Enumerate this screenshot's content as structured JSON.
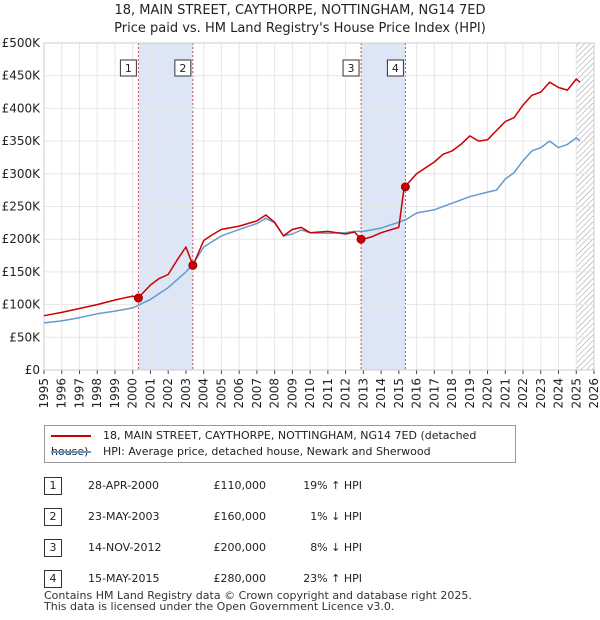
{
  "title_line1": "18, MAIN STREET, CAYTHORPE, NOTTINGHAM, NG14 7ED",
  "title_line2": "Price paid vs. HM Land Registry's House Price Index (HPI)",
  "colors": {
    "property": "#cc0000",
    "hpi": "#6699cc",
    "shade": "#dce6f7",
    "grid": "#e6e6e6",
    "marker": "#cc0000"
  },
  "legend": {
    "property": "18, MAIN STREET, CAYTHORPE, NOTTINGHAM, NG14 7ED (detached house)",
    "hpi": "HPI: Average price, detached house, Newark and Sherwood"
  },
  "sales": [
    {
      "num": "1",
      "date": "28-APR-2000",
      "price": "£110,000",
      "hpi": "19% ↑ HPI"
    },
    {
      "num": "2",
      "date": "23-MAY-2003",
      "price": "£160,000",
      "hpi": "1% ↓ HPI"
    },
    {
      "num": "3",
      "date": "14-NOV-2012",
      "price": "£200,000",
      "hpi": "8% ↓ HPI"
    },
    {
      "num": "4",
      "date": "15-MAY-2015",
      "price": "£280,000",
      "hpi": "23% ↑ HPI"
    }
  ],
  "footer_line1": "Contains HM Land Registry data © Crown copyright and database right 2025.",
  "footer_line2": "This data is licensed under the Open Government Licence v3.0.",
  "chart_data": {
    "type": "line",
    "title": "18, MAIN STREET, CAYTHORPE, NOTTINGHAM, NG14 7ED — Price paid vs. HM Land Registry's House Price Index (HPI)",
    "xlabel": "",
    "ylabel": "",
    "xlim": [
      1995,
      2026
    ],
    "ylim": [
      0,
      500000
    ],
    "y_ticks": [
      0,
      50000,
      100000,
      150000,
      200000,
      250000,
      300000,
      350000,
      400000,
      450000,
      500000
    ],
    "y_tick_labels": [
      "£0",
      "£50K",
      "£100K",
      "£150K",
      "£200K",
      "£250K",
      "£300K",
      "£350K",
      "£400K",
      "£450K",
      "£500K"
    ],
    "x_ticks": [
      1995,
      1996,
      1997,
      1998,
      1999,
      2000,
      2001,
      2002,
      2003,
      2004,
      2005,
      2006,
      2007,
      2008,
      2009,
      2010,
      2011,
      2012,
      2013,
      2014,
      2015,
      2016,
      2017,
      2018,
      2019,
      2020,
      2021,
      2022,
      2023,
      2024,
      2025,
      2026
    ],
    "x_tick_labels": [
      "1995",
      "1996",
      "1997",
      "1998",
      "1999",
      "2000",
      "2001",
      "2002",
      "2003",
      "2004",
      "2005",
      "2006",
      "2007",
      "2008",
      "2009",
      "2010",
      "2011",
      "2012",
      "2013",
      "2014",
      "2015",
      "2016",
      "2017",
      "2018",
      "2019",
      "2020",
      "2021",
      "2022",
      "2023",
      "2024",
      "2025",
      "2026"
    ],
    "shaded_periods": [
      [
        2000.32,
        2003.39
      ],
      [
        2012.87,
        2015.37
      ]
    ],
    "forecast_hatch_start": 2025.0,
    "sale_markers": [
      {
        "label": "1",
        "x": 2000.32,
        "y": 110000
      },
      {
        "label": "2",
        "x": 2003.39,
        "y": 160000
      },
      {
        "label": "3",
        "x": 2012.87,
        "y": 200000
      },
      {
        "label": "4",
        "x": 2015.37,
        "y": 280000
      }
    ],
    "series": [
      {
        "name": "18, MAIN STREET, CAYTHORPE, NOTTINGHAM, NG14 7ED (detached house)",
        "x": [
          1995.0,
          1996.0,
          1997.0,
          1998.0,
          1999.0,
          2000.0,
          2000.3,
          2001.0,
          2001.5,
          2002.0,
          2002.5,
          2003.0,
          2003.4,
          2004.0,
          2004.5,
          2005.0,
          2006.0,
          2007.0,
          2007.5,
          2008.0,
          2008.5,
          2009.0,
          2009.5,
          2010.0,
          2011.0,
          2012.0,
          2012.5,
          2012.87,
          2013.0,
          2013.5,
          2014.0,
          2015.0,
          2015.3,
          2015.4,
          2016.0,
          2017.0,
          2017.5,
          2018.0,
          2018.5,
          2019.0,
          2019.5,
          2020.0,
          2020.5,
          2021.0,
          2021.5,
          2022.0,
          2022.5,
          2023.0,
          2023.5,
          2024.0,
          2024.5,
          2025.0,
          2025.2
        ],
        "values": [
          83000,
          88000,
          94000,
          100000,
          107000,
          113000,
          110000,
          130000,
          140000,
          146000,
          168000,
          188000,
          160000,
          198000,
          207000,
          215000,
          220000,
          228000,
          237000,
          226000,
          205000,
          215000,
          218000,
          210000,
          212000,
          208000,
          211000,
          200000,
          200000,
          204000,
          210000,
          218000,
          280000,
          282000,
          300000,
          318000,
          330000,
          335000,
          345000,
          358000,
          350000,
          352000,
          366000,
          380000,
          386000,
          405000,
          420000,
          425000,
          440000,
          432000,
          428000,
          445000,
          440000
        ]
      },
      {
        "name": "HPI: Average price, detached house, Newark and Sherwood",
        "x": [
          1995.0,
          1996.0,
          1997.0,
          1998.0,
          1999.0,
          2000.0,
          2001.0,
          2002.0,
          2003.0,
          2003.4,
          2004.0,
          2005.0,
          2006.0,
          2007.0,
          2007.5,
          2008.0,
          2008.5,
          2009.0,
          2009.5,
          2010.0,
          2011.0,
          2012.0,
          2012.5,
          2013.0,
          2014.0,
          2015.0,
          2015.4,
          2016.0,
          2017.0,
          2018.0,
          2019.0,
          2020.0,
          2020.5,
          2021.0,
          2021.5,
          2022.0,
          2022.5,
          2023.0,
          2023.5,
          2024.0,
          2024.5,
          2025.0,
          2025.2
        ],
        "values": [
          72000,
          75000,
          80000,
          86000,
          90000,
          95000,
          108000,
          126000,
          150000,
          162000,
          188000,
          205000,
          215000,
          224000,
          232000,
          225000,
          205000,
          208000,
          214000,
          210000,
          209000,
          210000,
          212000,
          212000,
          217000,
          226000,
          230000,
          240000,
          245000,
          255000,
          265000,
          272000,
          275000,
          292000,
          302000,
          320000,
          335000,
          340000,
          350000,
          340000,
          345000,
          355000,
          350000
        ]
      }
    ]
  }
}
